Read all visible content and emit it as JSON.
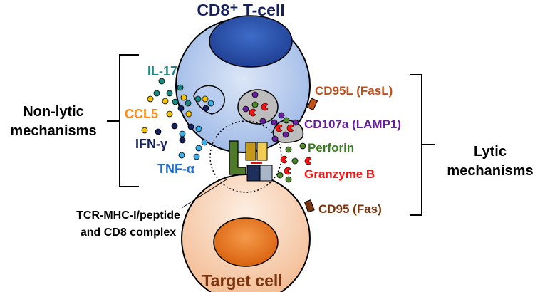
{
  "title": "CD8⁺ T-cell",
  "target_label": "Target cell",
  "left_group": {
    "line1": "Non-lytic",
    "line2": "mechanisms"
  },
  "right_group": {
    "line1": "Lytic",
    "line2": "mechanisms"
  },
  "cytokines": [
    {
      "label": "IL-17",
      "color": "#1a8a84"
    },
    {
      "label": "CCL5",
      "color": "#ff8c1a"
    },
    {
      "label": "IFN-γ",
      "color": "#16205a"
    },
    {
      "label": "TNF-α",
      "color": "#1f6fd0"
    }
  ],
  "lytic_labels": [
    {
      "label": "CD95L (FasL)",
      "color": "#c0501a"
    },
    {
      "label": "CD107a (LAMP1)",
      "color": "#6a1fa0"
    },
    {
      "label": "Perforin",
      "color": "#3a7a22"
    },
    {
      "label": "Granzyme B",
      "color": "#ff1010"
    },
    {
      "label": "CD95 (Fas)",
      "color": "#7a3510"
    }
  ],
  "complex_label": {
    "line1": "TCR-MHC-I/peptide",
    "line2": "and CD8 complex"
  },
  "colors": {
    "title": "#16205a",
    "target": "#7a3510",
    "tcell": "#a9c4ec",
    "tnucleus": "#2d55b0",
    "target_cell": "#f6c9a8",
    "target_nucleus": "#e87a2a"
  }
}
